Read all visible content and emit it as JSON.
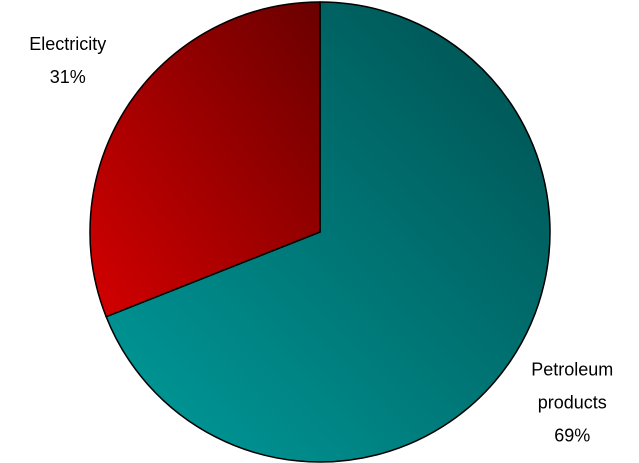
{
  "chart_data": {
    "type": "pie",
    "categories": [
      "Petroleum products",
      "Electricity"
    ],
    "values": [
      69,
      31
    ],
    "value_labels": [
      "69%",
      "31%"
    ],
    "colors": [
      "#009c9c",
      "#d40000"
    ]
  }
}
